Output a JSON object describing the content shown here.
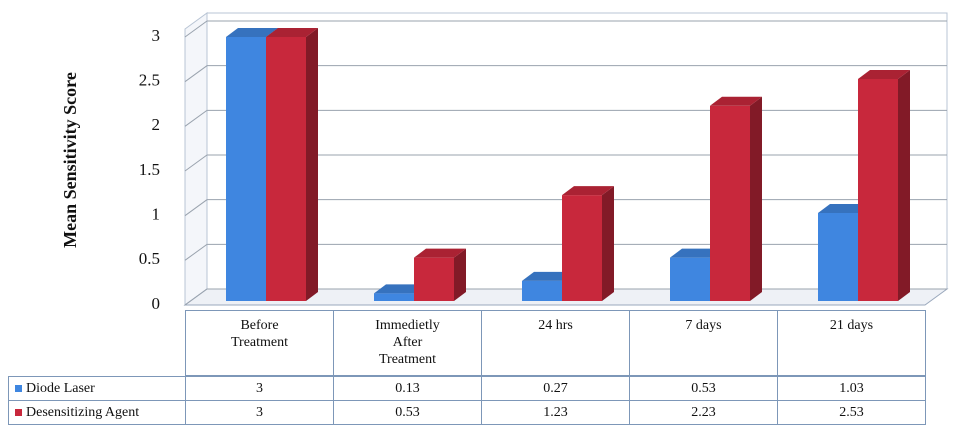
{
  "chart_data": {
    "type": "bar3d",
    "y_label": "Mean Sensitivity Score",
    "categories": [
      "Before Treatment",
      "Immedietly After Treatment",
      "24 hrs",
      "7 days",
      "21 days"
    ],
    "series": [
      {
        "name": "Diode Laser",
        "color": "#3f86e0",
        "values": [
          3,
          0.13,
          0.27,
          0.53,
          1.03
        ]
      },
      {
        "name": "Desensitizing Agent",
        "color": "#c8283c",
        "values": [
          3,
          0.53,
          1.23,
          2.23,
          2.53
        ]
      }
    ],
    "ylim": [
      0,
      3
    ],
    "yticks": [
      0,
      0.5,
      1,
      1.5,
      2,
      2.5,
      3
    ],
    "grid": true,
    "data_table": true
  }
}
